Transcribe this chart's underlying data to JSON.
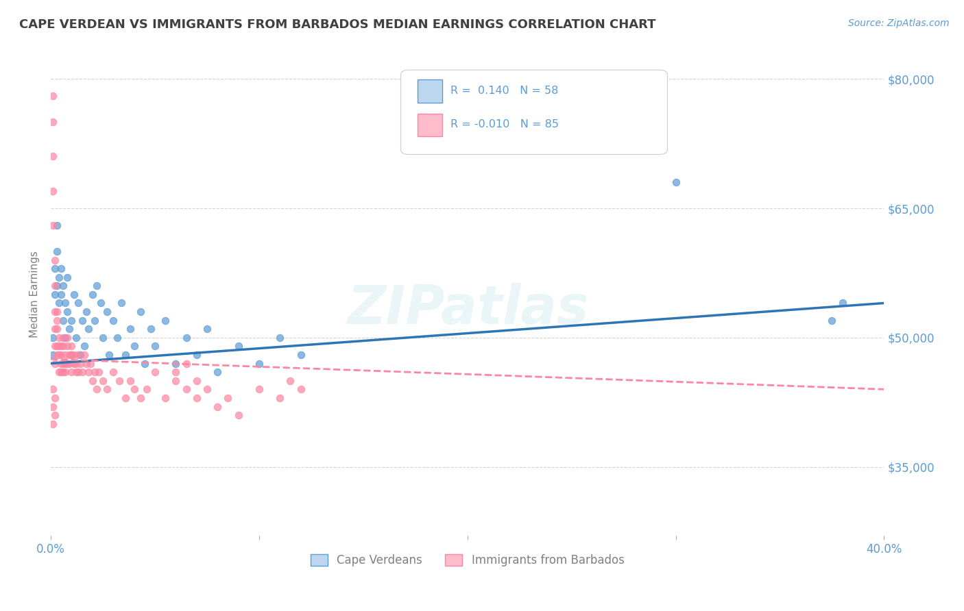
{
  "title": "CAPE VERDEAN VS IMMIGRANTS FROM BARBADOS MEDIAN EARNINGS CORRELATION CHART",
  "source_text": "Source: ZipAtlas.com",
  "ylabel": "Median Earnings",
  "xlim": [
    0.0,
    0.4
  ],
  "ylim": [
    27000,
    83000
  ],
  "yticks": [
    35000,
    50000,
    65000,
    80000
  ],
  "ytick_labels": [
    "$35,000",
    "$50,000",
    "$65,000",
    "$80,000"
  ],
  "xticks": [
    0.0,
    0.1,
    0.2,
    0.3,
    0.4
  ],
  "xtick_labels": [
    "0.0%",
    "",
    "",
    "",
    "40.0%"
  ],
  "blue_color": "#5B9BD5",
  "pink_color": "#FF85A1",
  "blue_fill": "#BDD7EE",
  "pink_fill": "#FFBCCC",
  "trend_blue_color": "#2E75B6",
  "trend_pink_color": "#FF85A1",
  "watermark": "ZIPatlas",
  "background_color": "#FFFFFF",
  "title_color": "#404040",
  "axis_label_color": "#808080",
  "tick_label_color": "#5B9BD5",
  "grid_color": "#C8C8C8",
  "cape_verdean_x": [
    0.001,
    0.001,
    0.002,
    0.002,
    0.003,
    0.003,
    0.003,
    0.004,
    0.004,
    0.005,
    0.005,
    0.006,
    0.006,
    0.007,
    0.007,
    0.008,
    0.008,
    0.009,
    0.01,
    0.01,
    0.011,
    0.012,
    0.013,
    0.014,
    0.015,
    0.016,
    0.017,
    0.018,
    0.02,
    0.021,
    0.022,
    0.024,
    0.025,
    0.027,
    0.028,
    0.03,
    0.032,
    0.034,
    0.036,
    0.038,
    0.04,
    0.043,
    0.045,
    0.048,
    0.05,
    0.055,
    0.06,
    0.065,
    0.07,
    0.075,
    0.08,
    0.09,
    0.1,
    0.11,
    0.12,
    0.3,
    0.375,
    0.38
  ],
  "cape_verdean_y": [
    48000,
    50000,
    55000,
    58000,
    56000,
    60000,
    63000,
    54000,
    57000,
    55000,
    58000,
    52000,
    56000,
    50000,
    54000,
    53000,
    57000,
    51000,
    48000,
    52000,
    55000,
    50000,
    54000,
    48000,
    52000,
    49000,
    53000,
    51000,
    55000,
    52000,
    56000,
    54000,
    50000,
    53000,
    48000,
    52000,
    50000,
    54000,
    48000,
    51000,
    49000,
    53000,
    47000,
    51000,
    49000,
    52000,
    47000,
    50000,
    48000,
    51000,
    46000,
    49000,
    47000,
    50000,
    48000,
    68000,
    52000,
    54000
  ],
  "barbados_x": [
    0.001,
    0.001,
    0.001,
    0.001,
    0.001,
    0.002,
    0.002,
    0.002,
    0.002,
    0.002,
    0.002,
    0.003,
    0.003,
    0.003,
    0.003,
    0.003,
    0.004,
    0.004,
    0.004,
    0.004,
    0.005,
    0.005,
    0.005,
    0.005,
    0.006,
    0.006,
    0.006,
    0.006,
    0.007,
    0.007,
    0.007,
    0.008,
    0.008,
    0.008,
    0.009,
    0.009,
    0.01,
    0.01,
    0.01,
    0.011,
    0.011,
    0.012,
    0.012,
    0.013,
    0.013,
    0.014,
    0.015,
    0.016,
    0.017,
    0.018,
    0.019,
    0.02,
    0.021,
    0.022,
    0.023,
    0.025,
    0.027,
    0.03,
    0.033,
    0.036,
    0.038,
    0.04,
    0.043,
    0.046,
    0.05,
    0.055,
    0.06,
    0.065,
    0.07,
    0.075,
    0.08,
    0.085,
    0.09,
    0.1,
    0.11,
    0.115,
    0.12,
    0.06,
    0.065,
    0.07,
    0.001,
    0.001,
    0.001,
    0.002,
    0.002
  ],
  "barbados_y": [
    78000,
    75000,
    71000,
    67000,
    63000,
    59000,
    56000,
    53000,
    51000,
    49000,
    47000,
    53000,
    52000,
    51000,
    49000,
    48000,
    50000,
    49000,
    48000,
    46000,
    49000,
    48000,
    47000,
    46000,
    50000,
    49000,
    47000,
    46000,
    48000,
    47000,
    46000,
    50000,
    49000,
    47000,
    48000,
    47000,
    49000,
    48000,
    46000,
    48000,
    47000,
    47000,
    46000,
    48000,
    46000,
    47000,
    46000,
    48000,
    47000,
    46000,
    47000,
    45000,
    46000,
    44000,
    46000,
    45000,
    44000,
    46000,
    45000,
    43000,
    45000,
    44000,
    43000,
    44000,
    46000,
    43000,
    45000,
    44000,
    43000,
    44000,
    42000,
    43000,
    41000,
    44000,
    43000,
    45000,
    44000,
    46000,
    47000,
    45000,
    44000,
    42000,
    40000,
    43000,
    41000
  ]
}
